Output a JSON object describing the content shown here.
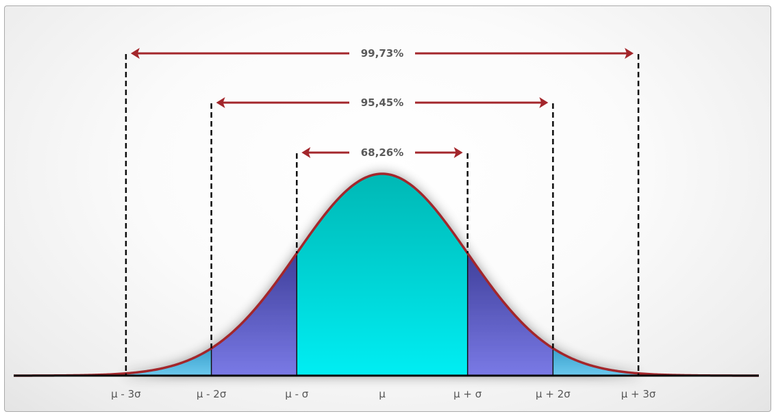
{
  "diagram": {
    "type": "normal-distribution",
    "ranges": [
      {
        "label": "68,26%",
        "sigma": 1
      },
      {
        "label": "95,45%",
        "sigma": 2
      },
      {
        "label": "99,73%",
        "sigma": 3
      }
    ],
    "axis_labels": [
      "μ - 3σ",
      "μ - 2σ",
      "μ - σ",
      "μ",
      "μ + σ",
      "μ + 2σ",
      "μ + 3σ"
    ],
    "colors": {
      "curve": "#a3262b",
      "arrow": "#a3262b",
      "center_fill_top": "#00b8b5",
      "center_fill_bottom": "#00eef3",
      "mid_fill_top": "#3f3f9a",
      "mid_fill_bottom": "#7a7ae6",
      "tail_fill_top": "#3aa0cc",
      "tail_fill_bottom": "#6cc9ee",
      "axis": "#0a0a0a",
      "dash": "#0a0a0a"
    }
  }
}
